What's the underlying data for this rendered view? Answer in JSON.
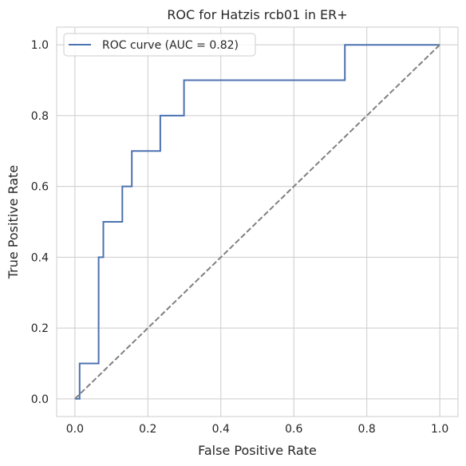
{
  "chart_data": {
    "type": "line",
    "title": "ROC for Hatzis rcb01 in ER+",
    "xlabel": "False Positive Rate",
    "ylabel": "True Positive Rate",
    "xlim": [
      -0.05,
      1.05
    ],
    "ylim": [
      -0.05,
      1.05
    ],
    "xticks": [
      0.0,
      0.2,
      0.4,
      0.6,
      0.8,
      1.0
    ],
    "yticks": [
      0.0,
      0.2,
      0.4,
      0.6,
      0.8,
      1.0
    ],
    "tick_labels": [
      "0.0",
      "0.2",
      "0.4",
      "0.6",
      "0.8",
      "1.0"
    ],
    "grid": true,
    "legend": "upper left",
    "series": [
      {
        "name": "ROC curve (AUC = 0.82)",
        "color": "#4c72b0",
        "style": "solid",
        "x": [
          0.0,
          0.013,
          0.013,
          0.065,
          0.065,
          0.078,
          0.078,
          0.13,
          0.13,
          0.156,
          0.156,
          0.234,
          0.234,
          0.299,
          0.299,
          0.74,
          0.74,
          1.0
        ],
        "y": [
          0.0,
          0.0,
          0.1,
          0.1,
          0.4,
          0.4,
          0.5,
          0.5,
          0.6,
          0.6,
          0.7,
          0.7,
          0.8,
          0.8,
          0.9,
          0.9,
          1.0,
          1.0
        ]
      },
      {
        "color": "#808080",
        "style": "dashed",
        "x": [
          0.0,
          1.0
        ],
        "y": [
          0.0,
          1.0
        ]
      }
    ]
  }
}
